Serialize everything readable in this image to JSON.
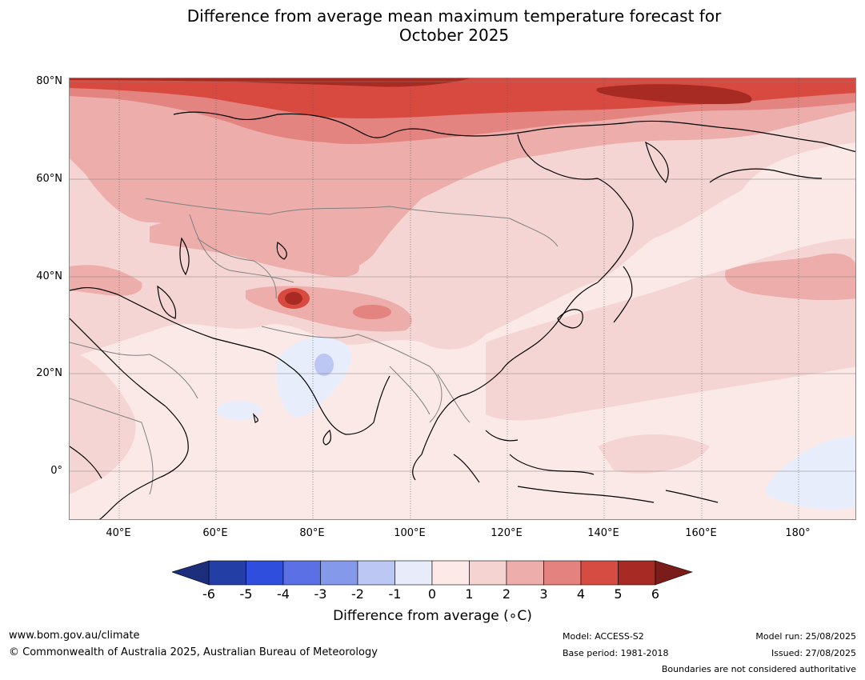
{
  "title": {
    "line1": "Difference from average mean maximum temperature forecast for",
    "line2": "October 2025"
  },
  "map": {
    "lat_labels": [
      "80°N",
      "60°N",
      "40°N",
      "20°N",
      "0°"
    ],
    "lon_labels": [
      "40°E",
      "60°E",
      "80°E",
      "100°E",
      "120°E",
      "140°E",
      "160°E",
      "180°"
    ],
    "colors": {
      "ocean_base": "#fbe9e7",
      "near_zero_low": "#e8edfb",
      "near_zero_high": "#fce9e8",
      "low_warm": "#f5d5d3",
      "mid_warm": "#ecadab",
      "warm": "#e48480",
      "hot": "#d84a40",
      "very_hot": "#a72a23",
      "coast": "#000000",
      "border": "#808080"
    }
  },
  "colorbar": {
    "ticks": [
      "-6",
      "-5",
      "-4",
      "-3",
      "-2",
      "-1",
      "0",
      "1",
      "2",
      "3",
      "4",
      "5",
      "6"
    ],
    "colors": [
      "#233ea5",
      "#2f4edd",
      "#5a70e4",
      "#8499ea",
      "#bcc7f4",
      "#e8ecfa",
      "#fde9e8",
      "#f5d3d1",
      "#ecadab",
      "#e4827f",
      "#d74c42",
      "#a72a24"
    ],
    "under_color": "#1c2e7c",
    "over_color": "#7a1d1a",
    "label": "Difference from average (∘C)"
  },
  "footer": {
    "website": "www.bom.gov.au/climate",
    "copyright": "© Commonwealth of Australia 2025, Australian Bureau of Meteorology",
    "model": "Model: ACCESS-S2",
    "base_period": "Base period: 1981-2018",
    "model_run": "Model run: 25/08/2025",
    "issued": "Issued: 27/08/2025",
    "disclaimer": "Boundaries are not considered authoritative"
  }
}
